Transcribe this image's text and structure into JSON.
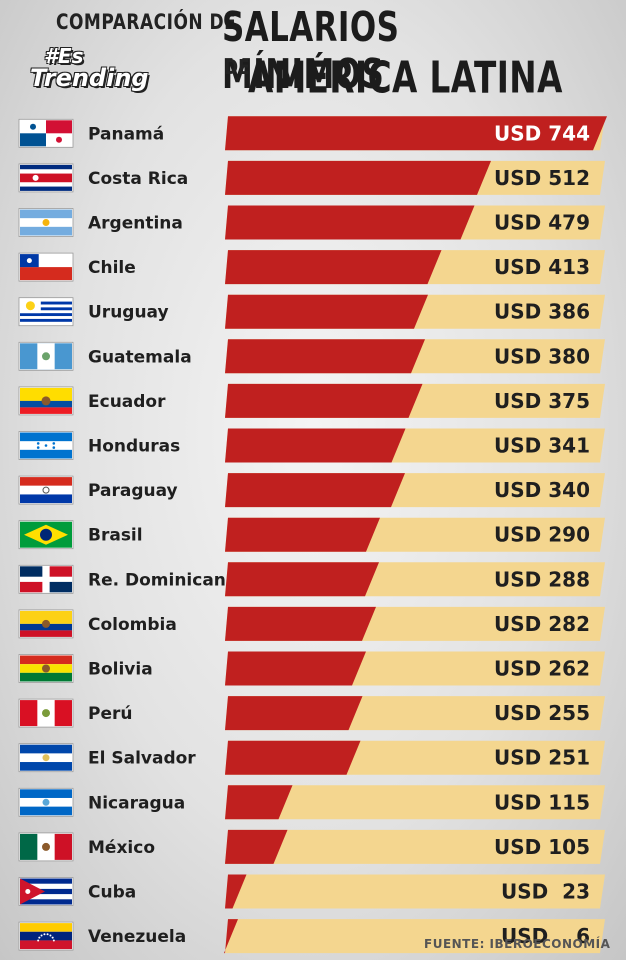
{
  "header": {
    "title_line1_small": "COMPARACIÓN DE",
    "title_line1_big": "SALARIOS MÍNIMOS",
    "title_line2_small": "DE",
    "title_line2_big": "AMÉRICA LATINA",
    "logo_line1": "#Es",
    "logo_line2": "Trending"
  },
  "colors": {
    "bar_red": "#c0201f",
    "bar_track": "#f4d68f",
    "text_dark": "#1f1f1f"
  },
  "chart_data": {
    "type": "bar",
    "orientation": "horizontal",
    "title": "COMPARACIÓN DE SALARIOS MÍNIMOS DE AMÉRICA LATINA",
    "unit_prefix": "USD",
    "categories": [
      "Panamá",
      "Costa Rica",
      "Argentina",
      "Chile",
      "Uruguay",
      "Guatemala",
      "Ecuador",
      "Honduras",
      "Paraguay",
      "Brasil",
      "Re. Dominicana",
      "Colombia",
      "Bolivia",
      "Perú",
      "El Salvador",
      "Nicaragua",
      "México",
      "Cuba",
      "Venezuela"
    ],
    "values": [
      744,
      512,
      479,
      413,
      386,
      380,
      375,
      341,
      340,
      290,
      288,
      282,
      262,
      255,
      251,
      115,
      105,
      23,
      6
    ],
    "labels": [
      "USD 744",
      "USD 512",
      "USD 479",
      "USD 413",
      "USD 386",
      "USD 380",
      "USD 375",
      "USD 341",
      "USD 340",
      "USD 290",
      "USD 288",
      "USD 282",
      "USD 262",
      "USD 255",
      "USD 251",
      "USD 115",
      "USD 105",
      "USD  23",
      "USD    6"
    ],
    "xlim": [
      0,
      744
    ],
    "grid": false,
    "legend": "none",
    "flag_icons": [
      "panama-flag-icon",
      "costa-rica-flag-icon",
      "argentina-flag-icon",
      "chile-flag-icon",
      "uruguay-flag-icon",
      "guatemala-flag-icon",
      "ecuador-flag-icon",
      "honduras-flag-icon",
      "paraguay-flag-icon",
      "brasil-flag-icon",
      "dominican-republic-flag-icon",
      "colombia-flag-icon",
      "bolivia-flag-icon",
      "peru-flag-icon",
      "el-salvador-flag-icon",
      "nicaragua-flag-icon",
      "mexico-flag-icon",
      "cuba-flag-icon",
      "venezuela-flag-icon"
    ],
    "source": "FUENTE: IBEROECONOMÍA"
  }
}
